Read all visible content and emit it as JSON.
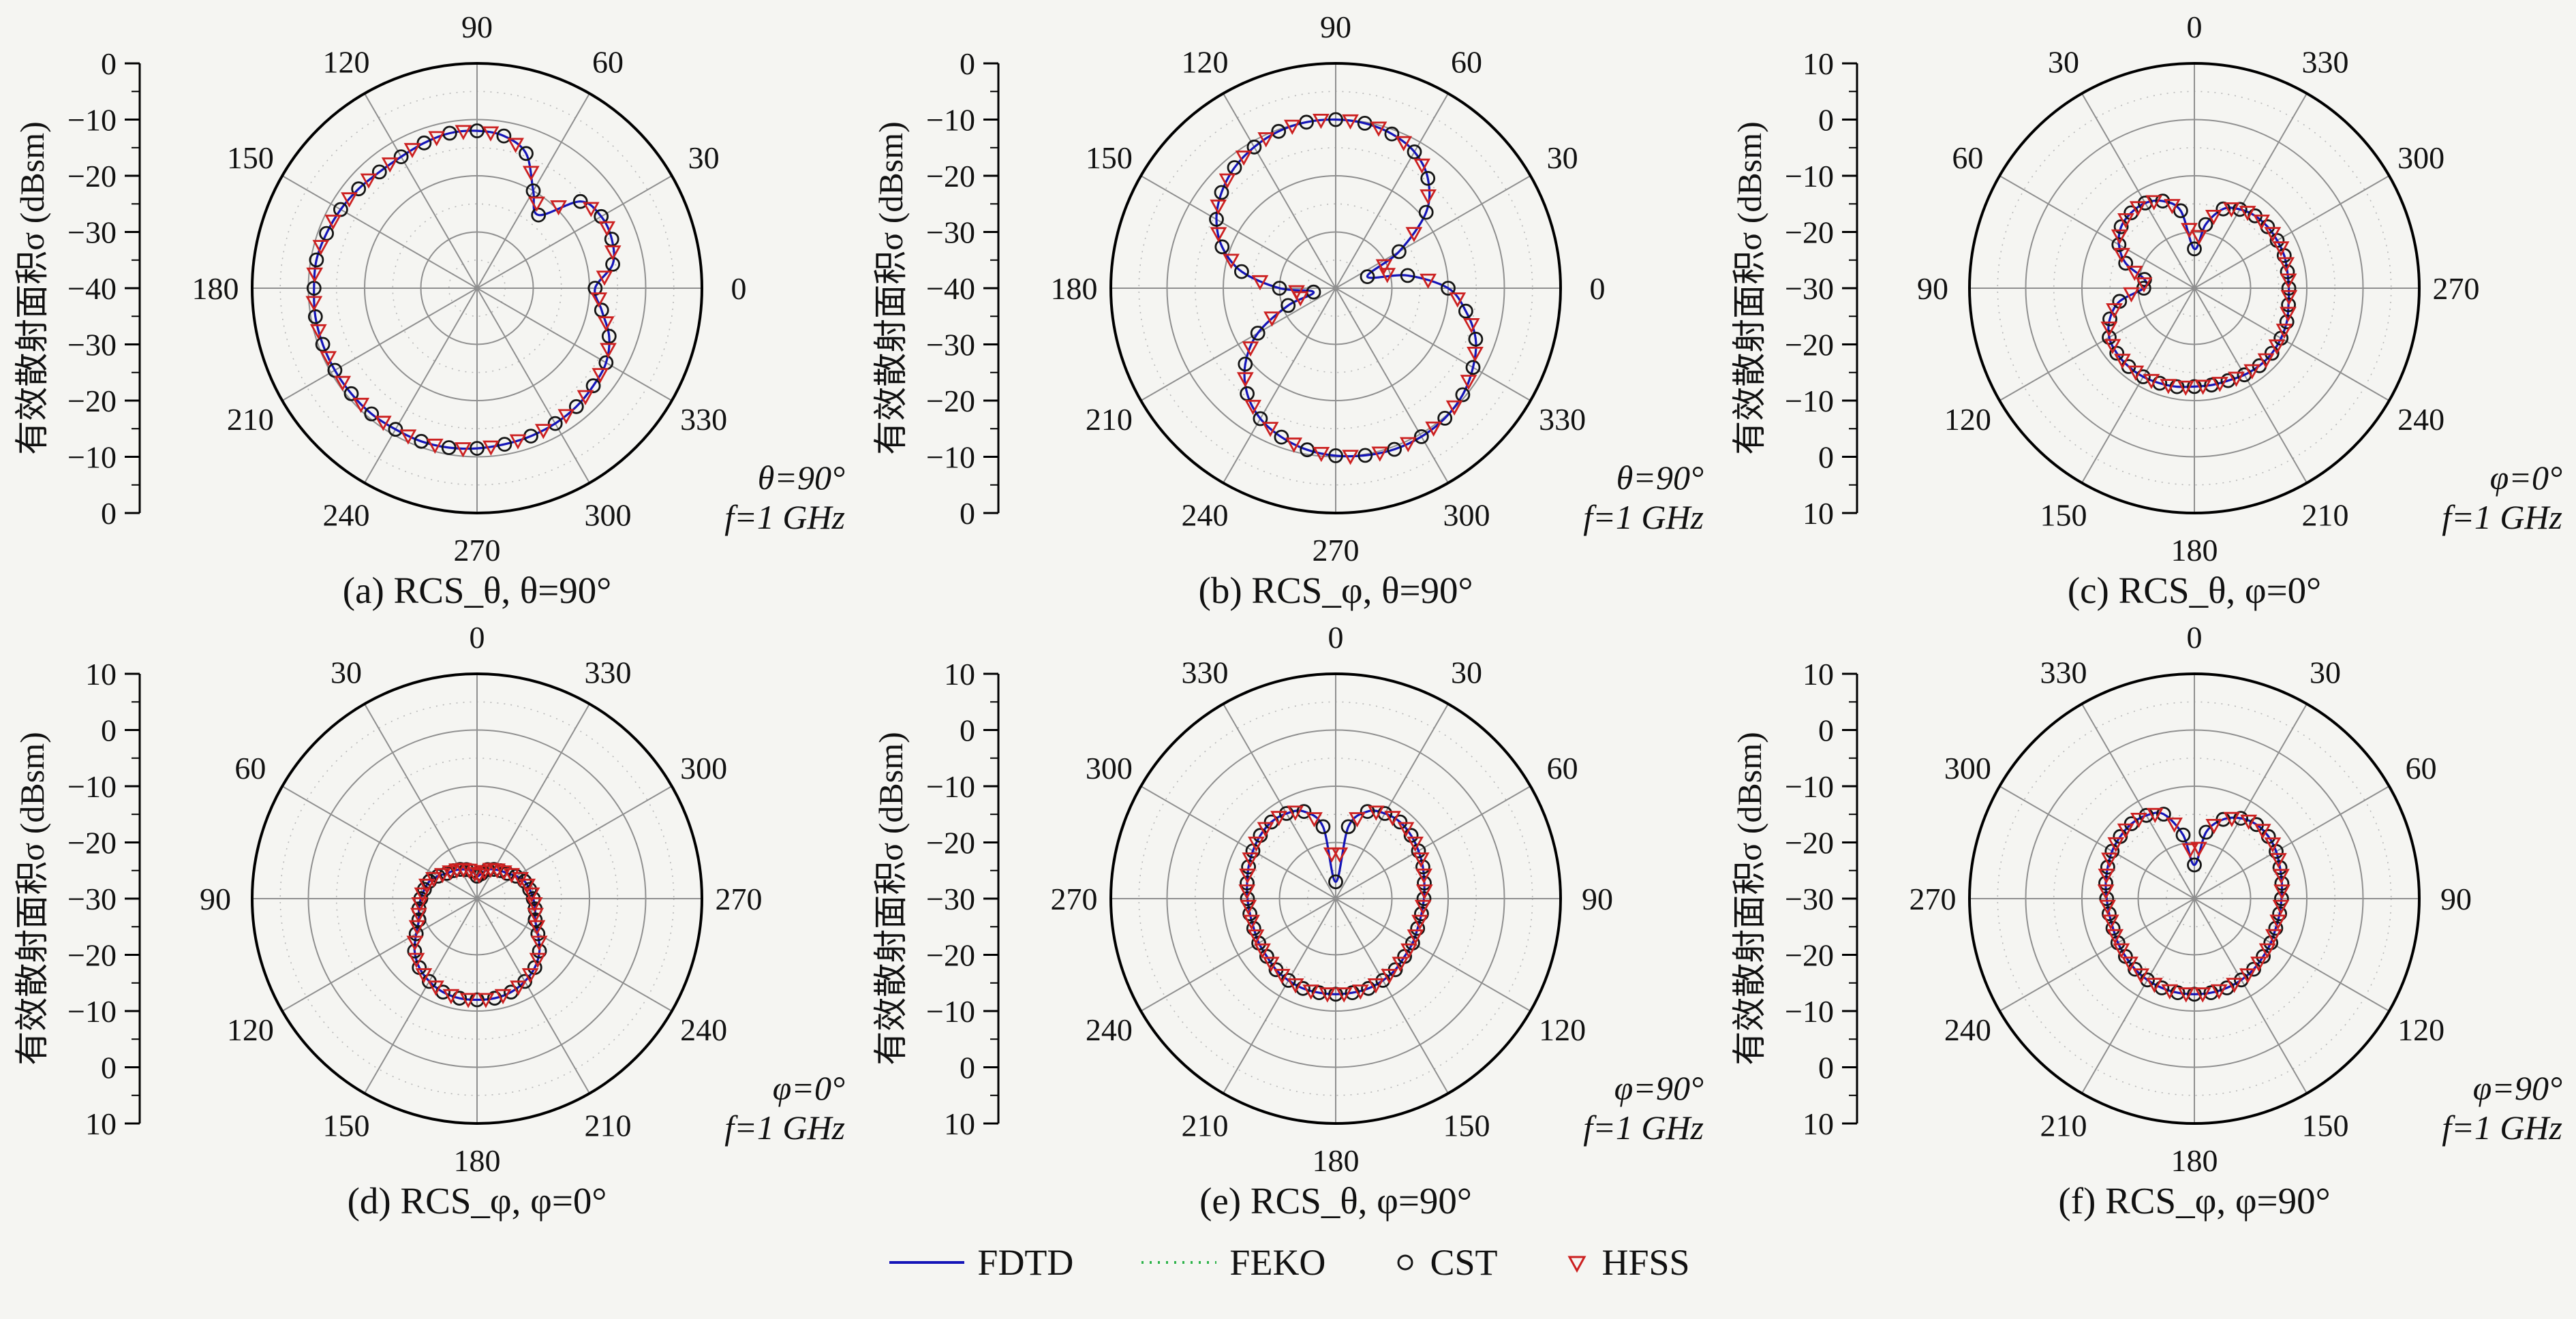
{
  "ylabel": "有效散射面积σ (dBsm)",
  "colors": {
    "fdtd": "#1414b8",
    "feko": "#2db34a",
    "cst": "#151515",
    "hfss": "#cc2020",
    "grid": "#8f8f8f",
    "grid_minor": "#b8b8b8",
    "axis": "#000000",
    "text": "#111111",
    "background": "#f5f5f2"
  },
  "legend": {
    "items": [
      {
        "label": "FDTD",
        "marker": "solid-line",
        "color": "#1414b8"
      },
      {
        "label": "FEKO",
        "marker": "dotted-line",
        "color": "#2db34a"
      },
      {
        "label": "CST",
        "marker": "open-circle",
        "color": "#151515"
      },
      {
        "label": "HFSS",
        "marker": "open-triangle-down",
        "color": "#cc2020"
      }
    ]
  },
  "chart_data": [
    {
      "type": "polar-line",
      "title": "(a) RCS_θ, θ=90°",
      "annotation": [
        "θ=90°",
        "f=1 GHz"
      ],
      "zero_location": "east",
      "direction": "ccw",
      "r_min": -40,
      "r_max": 0,
      "r_ring_step": 10,
      "r_unit": "dBsm",
      "radial_axis_labels": [
        "0",
        "−10",
        "−20",
        "−30",
        "−40",
        "−30",
        "−20",
        "−10",
        "0"
      ],
      "angle_labels": [
        "0",
        "30",
        "60",
        "90",
        "120",
        "150",
        "180",
        "210",
        "240",
        "270",
        "300",
        "330"
      ],
      "angle_step_deg": 10,
      "series_names": [
        "FDTD",
        "FEKO",
        "CST",
        "HFSS"
      ],
      "series_overlap": true,
      "values": [
        -19,
        -15.5,
        -14.5,
        -14.5,
        -16,
        -23,
        -20,
        -14.5,
        -12.5,
        -12,
        -12,
        -12.5,
        -13,
        -13,
        -12.5,
        -12,
        -11.5,
        -11,
        -11,
        -10.8,
        -10.8,
        -10.8,
        -10.8,
        -10.8,
        -11,
        -11,
        -11.2,
        -11.5,
        -11.8,
        -12,
        -12.2,
        -12.5,
        -13,
        -13.5,
        -15,
        -17.5
      ]
    },
    {
      "type": "polar-line",
      "title": "(b) RCS_φ, θ=90°",
      "annotation": [
        "θ=90°",
        "f=1 GHz"
      ],
      "zero_location": "east",
      "direction": "ccw",
      "r_min": -40,
      "r_max": 0,
      "r_ring_step": 10,
      "r_unit": "dBsm",
      "radial_axis_labels": [
        "0",
        "−10",
        "−20",
        "−30",
        "−40",
        "−30",
        "−20",
        "−10",
        "0"
      ],
      "angle_labels": [
        "0",
        "30",
        "60",
        "90",
        "120",
        "150",
        "180",
        "210",
        "240",
        "270",
        "300",
        "330"
      ],
      "angle_step_deg": 10,
      "series_names": [
        "FDTD",
        "FEKO",
        "CST",
        "HFSS"
      ],
      "series_overlap": true,
      "values": [
        -20,
        -27,
        -34,
        -27,
        -19,
        -14.5,
        -12,
        -10.8,
        -10.2,
        -10,
        -10,
        -10.3,
        -11,
        -12,
        -13.5,
        -15.5,
        -18.5,
        -23,
        -30,
        -36,
        -31,
        -24,
        -19,
        -15.5,
        -13.2,
        -11.8,
        -10.8,
        -10.2,
        -9.8,
        -9.5,
        -9.5,
        -9.8,
        -10.5,
        -11.8,
        -13.5,
        -16.5
      ]
    },
    {
      "type": "polar-line",
      "title": "(c) RCS_θ, φ=0°",
      "annotation": [
        "φ=0°",
        "f=1 GHz"
      ],
      "zero_location": "north",
      "direction": "ccw",
      "r_min": -30,
      "r_max": 10,
      "r_ring_step": 10,
      "r_unit": "dBsm",
      "radial_axis_labels": [
        "10",
        "0",
        "−10",
        "−20",
        "−30",
        "−20",
        "−10",
        "0",
        "10"
      ],
      "angle_labels": [
        "0",
        "30",
        "60",
        "90",
        "120",
        "150",
        "180",
        "210",
        "240",
        "270",
        "300",
        "330"
      ],
      "angle_step_deg": 10,
      "series_names": [
        "FDTD",
        "FEKO",
        "CST",
        "HFSS"
      ],
      "series_overlap": true,
      "values": [
        -23,
        -16,
        -13.5,
        -12.5,
        -12.5,
        -13,
        -14.5,
        -17,
        -21,
        -21,
        -16.5,
        -14,
        -12.5,
        -12,
        -11.8,
        -11.8,
        -12,
        -12.2,
        -12.5,
        -12.5,
        -12.5,
        -12.2,
        -12,
        -12,
        -12.2,
        -12.5,
        -13,
        -13.2,
        -13.2,
        -13,
        -13,
        -13,
        -13.2,
        -13.8,
        -15,
        -18.5
      ]
    },
    {
      "type": "polar-line",
      "title": "(d) RCS_φ, φ=0°",
      "annotation": [
        "φ=0°",
        "f=1 GHz"
      ],
      "zero_location": "north",
      "direction": "ccw",
      "r_min": -30,
      "r_max": 10,
      "r_ring_step": 10,
      "r_unit": "dBsm",
      "radial_axis_labels": [
        "10",
        "0",
        "−10",
        "−20",
        "−30",
        "−20",
        "−10",
        "0",
        "10"
      ],
      "angle_labels": [
        "0",
        "30",
        "60",
        "90",
        "120",
        "150",
        "180",
        "210",
        "240",
        "270",
        "300",
        "330"
      ],
      "angle_step_deg": 10,
      "series_names": [
        "FDTD",
        "FEKO",
        "CST",
        "HFSS"
      ],
      "series_overlap": true,
      "values": [
        -26,
        -25,
        -24.5,
        -24,
        -23.5,
        -23,
        -22,
        -21,
        -20.5,
        -20,
        -19.5,
        -19,
        -17.5,
        -15.5,
        -14,
        -13,
        -12.3,
        -12,
        -12,
        -12,
        -12.3,
        -13,
        -14,
        -15.5,
        -17.5,
        -19,
        -19.5,
        -20,
        -20.5,
        -21,
        -22,
        -23,
        -23.5,
        -24,
        -24.5,
        -25.5
      ]
    },
    {
      "type": "polar-line",
      "title": "(e) RCS_θ, φ=90°",
      "annotation": [
        "φ=90°",
        "f=1 GHz"
      ],
      "zero_location": "north",
      "direction": "cw",
      "r_min": -30,
      "r_max": 10,
      "r_ring_step": 10,
      "r_unit": "dBsm",
      "radial_axis_labels": [
        "10",
        "0",
        "−10",
        "−20",
        "−30",
        "−20",
        "−10",
        "0",
        "10"
      ],
      "angle_labels": [
        "0",
        "30",
        "60",
        "90",
        "120",
        "150",
        "180",
        "210",
        "240",
        "270",
        "300",
        "330"
      ],
      "angle_step_deg": 10,
      "series_names": [
        "FDTD",
        "FEKO",
        "CST",
        "HFSS"
      ],
      "series_overlap": true,
      "values": [
        -27,
        -17,
        -13.5,
        -12.5,
        -12.2,
        -12.5,
        -13,
        -13.5,
        -14,
        -14.3,
        -14.5,
        -14.5,
        -14.2,
        -14,
        -13.5,
        -13.2,
        -13,
        -13,
        -13,
        -13,
        -13,
        -13.2,
        -13.5,
        -14,
        -14.2,
        -14.5,
        -14.5,
        -14.3,
        -14,
        -13.5,
        -13,
        -12.5,
        -12.2,
        -12.5,
        -13.5,
        -17
      ]
    },
    {
      "type": "polar-line",
      "title": "(f) RCS_φ, φ=90°",
      "annotation": [
        "φ=90°",
        "f=1 GHz"
      ],
      "zero_location": "north",
      "direction": "cw",
      "r_min": -30,
      "r_max": 10,
      "r_ring_step": 10,
      "r_unit": "dBsm",
      "radial_axis_labels": [
        "10",
        "0",
        "−10",
        "−20",
        "−30",
        "−20",
        "−10",
        "0",
        "10"
      ],
      "angle_labels": [
        "0",
        "30",
        "60",
        "90",
        "120",
        "150",
        "180",
        "210",
        "240",
        "270",
        "300",
        "330"
      ],
      "angle_step_deg": 10,
      "series_names": [
        "FDTD",
        "FEKO",
        "CST",
        "HFSS"
      ],
      "series_overlap": true,
      "values": [
        -24,
        -18,
        -15,
        -13.5,
        -12.8,
        -12.8,
        -13.2,
        -13.8,
        -14.2,
        -14.5,
        -14.6,
        -14.6,
        -14.3,
        -14,
        -13.6,
        -13.3,
        -13.1,
        -13,
        -13,
        -13,
        -13.1,
        -13.3,
        -13.6,
        -14,
        -14.3,
        -14.6,
        -14.6,
        -14.4,
        -14,
        -13.6,
        -13.1,
        -12.8,
        -12.6,
        -12.9,
        -14,
        -18.5
      ]
    }
  ]
}
